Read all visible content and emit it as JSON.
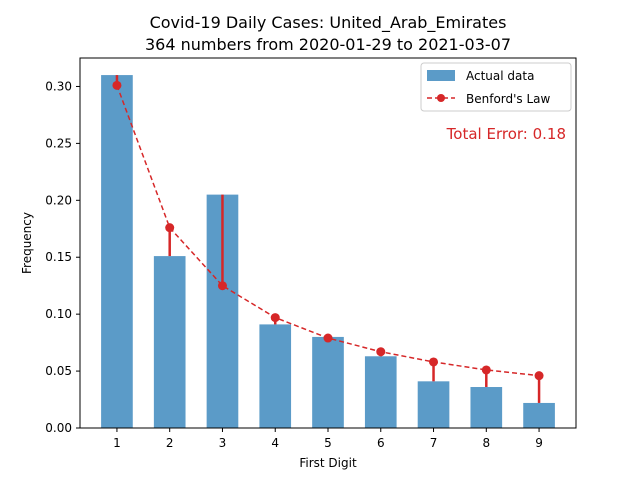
{
  "chart_data": {
    "type": "bar",
    "title_line1": "Covid-19 Daily Cases: United_Arab_Emirates",
    "title_line2": "364 numbers from 2020-01-29 to 2021-03-07",
    "xlabel": "First Digit",
    "ylabel": "Frequency",
    "categories": [
      "1",
      "2",
      "3",
      "4",
      "5",
      "6",
      "7",
      "8",
      "9"
    ],
    "x": [
      1,
      2,
      3,
      4,
      5,
      6,
      7,
      8,
      9
    ],
    "ylim": [
      0,
      0.325
    ],
    "yticks": [
      0.0,
      0.05,
      0.1,
      0.15,
      0.2,
      0.25,
      0.3
    ],
    "ytick_labels": [
      "0.00",
      "0.05",
      "0.10",
      "0.15",
      "0.20",
      "0.25",
      "0.30"
    ],
    "grid": false,
    "legend_position": "top-right",
    "series": [
      {
        "name": "Actual data",
        "kind": "bar",
        "color": "#5b9bc8",
        "values": [
          0.31,
          0.151,
          0.205,
          0.091,
          0.08,
          0.063,
          0.041,
          0.036,
          0.022
        ]
      },
      {
        "name": "Benford's Law",
        "kind": "line-dashed-markers",
        "color": "#d62728",
        "values": [
          0.301,
          0.176,
          0.125,
          0.097,
          0.079,
          0.067,
          0.058,
          0.051,
          0.046
        ]
      }
    ],
    "annotation": {
      "text": "Total Error: 0.18",
      "color": "#d62728"
    }
  }
}
